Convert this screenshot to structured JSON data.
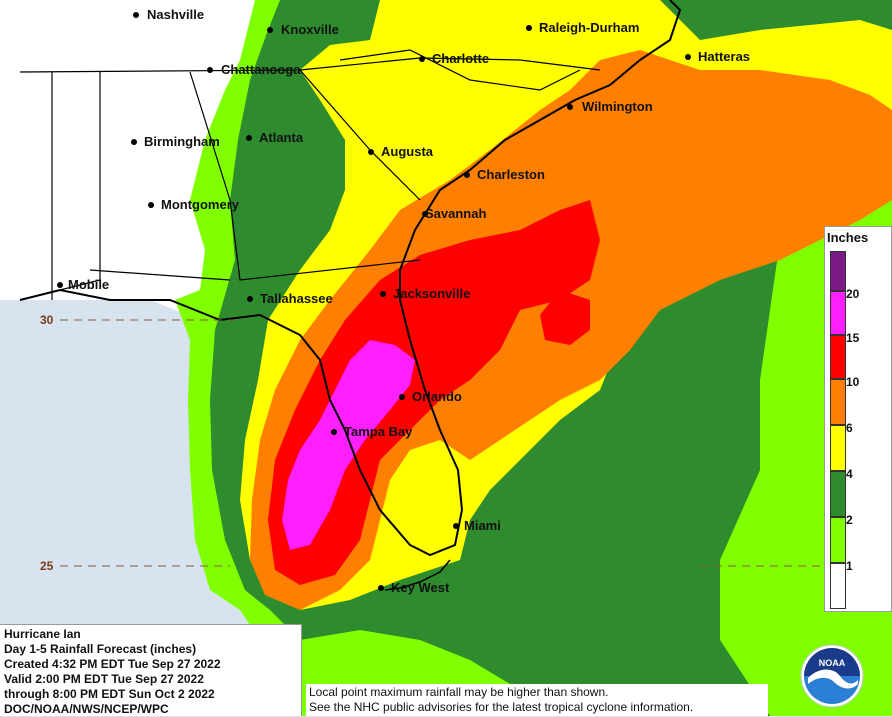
{
  "map": {
    "cities": [
      {
        "name": "Nashville"
      },
      {
        "name": "Knoxville"
      },
      {
        "name": "Raleigh-Durham"
      },
      {
        "name": "Charlotte"
      },
      {
        "name": "Hatteras"
      },
      {
        "name": "Chattanooga"
      },
      {
        "name": "Wilmington"
      },
      {
        "name": "Birmingham"
      },
      {
        "name": "Atlanta"
      },
      {
        "name": "Augusta"
      },
      {
        "name": "Charleston"
      },
      {
        "name": "Montgomery"
      },
      {
        "name": "Savannah"
      },
      {
        "name": "Mobile"
      },
      {
        "name": "Tallahassee"
      },
      {
        "name": "Jacksonville"
      },
      {
        "name": "Orlando"
      },
      {
        "name": "Tampa Bay"
      },
      {
        "name": "Miami"
      },
      {
        "name": "Key West"
      }
    ],
    "latitude_labels": [
      "30",
      "25"
    ]
  },
  "legend": {
    "title": "Inches",
    "ticks": [
      "20",
      "15",
      "10",
      "6",
      "4",
      "2",
      "1"
    ],
    "colors": {
      "gt20": "#7b1a86",
      "c15_20": "#ff1fff",
      "c10_15": "#ff0000",
      "c6_10": "#ff8000",
      "c4_6": "#ffff00",
      "c2_4": "#2e8b2e",
      "c1_2": "#7fff00",
      "lt1": "#ffffff"
    }
  },
  "info": {
    "lines": [
      "Hurricane Ian",
      "Day 1-5 Rainfall Forecast (inches)",
      "Created 4:32 PM EDT Tue Sep 27 2022",
      "Valid 2:00 PM EDT Tue Sep 27 2022",
      "through 8:00 PM EDT Sun Oct 2 2022",
      "DOC/NOAA/NWS/NCEP/WPC"
    ]
  },
  "disclaimer": {
    "lines": [
      "Local point maximum rainfall may be higher than shown.",
      "See the NHC public advisories for the latest tropical cyclone information."
    ]
  },
  "logo": {
    "text": "NOAA"
  }
}
